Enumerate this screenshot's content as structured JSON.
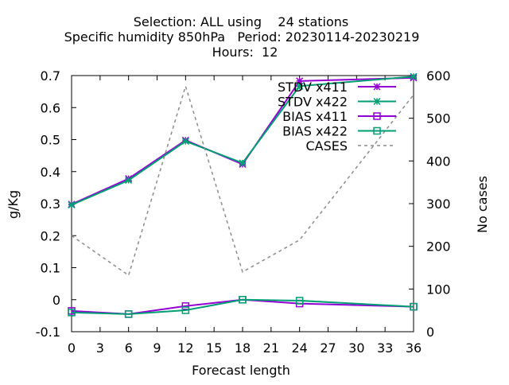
{
  "chart_data": {
    "type": "line",
    "title_lines": [
      "Selection: ALL using    24 stations",
      "Specific humidity 850hPa   Period: 20230114-20230219",
      "Hours:  12"
    ],
    "xlabel": "Forecast length",
    "ylabel": "g/Kg",
    "y2label": "No cases",
    "x": [
      0,
      6,
      12,
      18,
      24,
      36
    ],
    "xticks": [
      "0",
      "3",
      "6",
      "9",
      "12",
      "15",
      "18",
      "21",
      "24",
      "27",
      "30",
      "33",
      "36"
    ],
    "xlim": [
      0,
      36
    ],
    "yticks": [
      "-0.1",
      "0",
      "0.1",
      "0.2",
      "0.3",
      "0.4",
      "0.5",
      "0.6",
      "0.7"
    ],
    "ylim": [
      -0.1,
      0.7
    ],
    "y2ticks": [
      "0",
      "100",
      "200",
      "300",
      "400",
      "500",
      "600"
    ],
    "y2lim": [
      0,
      600
    ],
    "legend_position": "top-right",
    "grid": false,
    "series": [
      {
        "name": "STDV x411",
        "axis": "y",
        "color": "#9400d3",
        "marker": "star",
        "dash": false,
        "values": [
          0.298,
          0.378,
          0.498,
          0.423,
          0.683,
          0.693
        ]
      },
      {
        "name": "STDV x422",
        "axis": "y",
        "color": "#009e73",
        "marker": "star",
        "dash": false,
        "values": [
          0.296,
          0.373,
          0.495,
          0.427,
          0.667,
          0.697
        ]
      },
      {
        "name": "BIAS x411",
        "axis": "y",
        "color": "#9400d3",
        "marker": "square",
        "dash": false,
        "values": [
          -0.035,
          -0.045,
          -0.02,
          0.0,
          -0.012,
          -0.022
        ]
      },
      {
        "name": "BIAS x422",
        "axis": "y",
        "color": "#009e73",
        "marker": "square",
        "dash": false,
        "values": [
          -0.04,
          -0.045,
          -0.033,
          0.0,
          -0.003,
          -0.022
        ]
      },
      {
        "name": "CASES",
        "axis": "y2",
        "color": "#8c8c8c",
        "marker": "none",
        "dash": true,
        "values": [
          225,
          132,
          575,
          140,
          215,
          555
        ]
      }
    ]
  }
}
